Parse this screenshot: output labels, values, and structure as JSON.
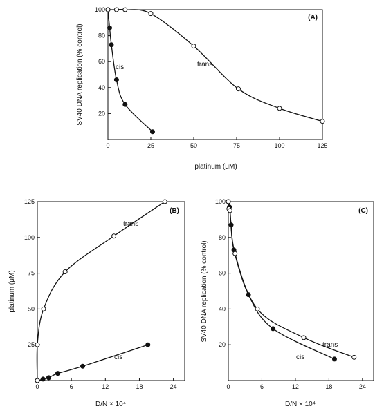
{
  "chart_data": [
    {
      "panel": "(A)",
      "type": "line",
      "xlabel": "platinum (μM)",
      "ylabel": "SV40 DNA replication (% control)",
      "xlim": [
        0,
        125
      ],
      "ylim": [
        0,
        100
      ],
      "xticks": [
        0,
        25,
        50,
        75,
        100,
        125
      ],
      "yticks": [
        20,
        40,
        60,
        80,
        100
      ],
      "grid": false,
      "series": [
        {
          "name": "cis",
          "marker": "filled",
          "x": [
            0,
            1,
            2,
            5,
            10,
            26
          ],
          "y": [
            100,
            86,
            73,
            46,
            27,
            6
          ]
        },
        {
          "name": "trans",
          "marker": "open",
          "x": [
            0,
            5,
            10,
            25,
            50,
            76,
            100,
            125
          ],
          "y": [
            100,
            100,
            100,
            97,
            72,
            39,
            24,
            14
          ]
        }
      ]
    },
    {
      "panel": "(B)",
      "type": "line",
      "xlabel": "D/N × 10⁴",
      "ylabel": "platinum (μM)",
      "xlim": [
        0,
        26
      ],
      "ylim": [
        0,
        125
      ],
      "xticks": [
        0,
        6,
        12,
        18,
        24
      ],
      "yticks": [
        25,
        50,
        75,
        100,
        125
      ],
      "grid": false,
      "series": [
        {
          "name": "cis",
          "marker": "filled",
          "x": [
            0,
            1,
            2,
            3.6,
            8,
            19.5
          ],
          "y": [
            0,
            1,
            2,
            5,
            10,
            25
          ]
        },
        {
          "name": "trans",
          "marker": "open",
          "x": [
            0,
            0,
            1.1,
            4.9,
            13.5,
            22.5
          ],
          "y": [
            0,
            25,
            50,
            76,
            101,
            125
          ]
        }
      ]
    },
    {
      "panel": "(C)",
      "type": "line",
      "xlabel": "D/N × 10⁴",
      "ylabel": "SV40 DNA replication (% control)",
      "xlim": [
        0,
        26
      ],
      "ylim": [
        0,
        100
      ],
      "xticks": [
        0,
        6,
        12,
        18,
        24
      ],
      "yticks": [
        20,
        40,
        60,
        80,
        100
      ],
      "grid": false,
      "series": [
        {
          "name": "cis",
          "marker": "filled",
          "x": [
            0,
            0.2,
            0.5,
            1,
            3.6,
            8,
            19
          ],
          "y": [
            100,
            97,
            87,
            73,
            48,
            29,
            12
          ]
        },
        {
          "name": "trans",
          "marker": "open",
          "x": [
            0,
            0.1,
            0.3,
            1.2,
            5.2,
            13.5,
            22.5
          ],
          "y": [
            100,
            96,
            95,
            71,
            40,
            24,
            13
          ]
        }
      ]
    }
  ]
}
